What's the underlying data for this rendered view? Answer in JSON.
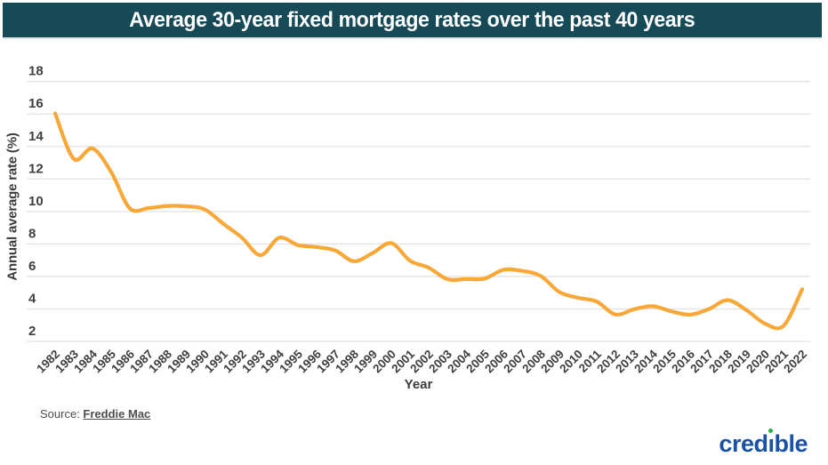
{
  "title": "Average 30-year fixed mortgage rates over the past 40 years",
  "colors": {
    "banner_bg": "#174A57",
    "title_text": "#FFFFFF",
    "line": "#F7A838",
    "grid": "#E2E2E2",
    "tick_text": "#3F3F3F",
    "logo_blue": "#1A51A2",
    "logo_green": "#2FA84F"
  },
  "source": {
    "prefix": "Source: ",
    "link_text": "Freddie Mac"
  },
  "logo": {
    "word": "credible",
    "p1": "cred",
    "p2": "ı",
    "p3": "ble"
  },
  "chart_data": {
    "type": "line",
    "title": "Average 30-year fixed mortgage rates over the past 40 years",
    "xlabel": "Year",
    "ylabel": "Annual average rate (%)",
    "ylim": [
      2,
      18
    ],
    "yticks": [
      2,
      4,
      6,
      8,
      10,
      12,
      14,
      16,
      18
    ],
    "grid": true,
    "legend": "none",
    "x": [
      1982,
      1983,
      1984,
      1985,
      1986,
      1987,
      1988,
      1989,
      1990,
      1991,
      1992,
      1993,
      1994,
      1995,
      1996,
      1997,
      1998,
      1999,
      2000,
      2001,
      2002,
      2003,
      2004,
      2005,
      2006,
      2007,
      2008,
      2009,
      2010,
      2011,
      2012,
      2013,
      2014,
      2015,
      2016,
      2017,
      2018,
      2019,
      2020,
      2021,
      2022
    ],
    "values": [
      16.04,
      13.24,
      13.88,
      12.43,
      10.19,
      10.21,
      10.34,
      10.32,
      10.13,
      9.25,
      8.39,
      7.31,
      8.38,
      7.93,
      7.81,
      7.6,
      6.94,
      7.44,
      8.05,
      6.97,
      6.54,
      5.83,
      5.84,
      5.87,
      6.41,
      6.34,
      6.03,
      5.04,
      4.69,
      4.45,
      3.66,
      3.98,
      4.17,
      3.85,
      3.65,
      3.99,
      4.54,
      3.94,
      3.1,
      2.96,
      5.22
    ]
  }
}
